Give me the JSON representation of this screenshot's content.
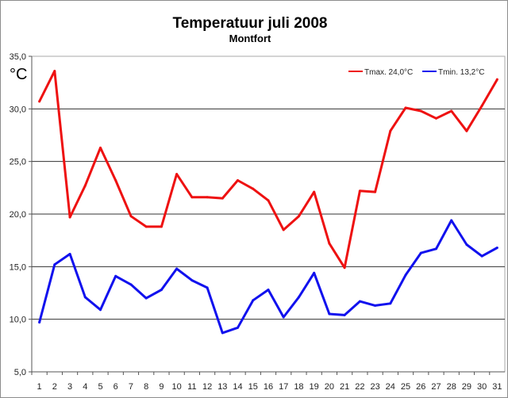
{
  "chart_data": {
    "type": "line",
    "title": "Temperatuur juli 2008",
    "subtitle": "Montfort",
    "ylabel": "°C",
    "xlabel": "",
    "ylim": [
      5,
      35
    ],
    "yticks": [
      5,
      10,
      15,
      20,
      25,
      30,
      35
    ],
    "ytick_labels": [
      "5,0",
      "10,0",
      "15,0",
      "20,0",
      "25,0",
      "30,0",
      "35,0"
    ],
    "grid": true,
    "legend_position": "top-right",
    "x": [
      1,
      2,
      3,
      4,
      5,
      6,
      7,
      8,
      9,
      10,
      11,
      12,
      13,
      14,
      15,
      16,
      17,
      18,
      19,
      20,
      21,
      22,
      23,
      24,
      25,
      26,
      27,
      28,
      29,
      30,
      31
    ],
    "series": [
      {
        "name": "Tmax. 24,0°C",
        "color": "#ee1111",
        "values": [
          30.7,
          33.6,
          19.7,
          22.7,
          26.3,
          23.2,
          19.8,
          18.8,
          18.8,
          23.8,
          21.6,
          21.6,
          21.5,
          23.2,
          22.4,
          21.3,
          18.5,
          19.8,
          22.1,
          17.2,
          14.9,
          22.2,
          22.1,
          27.9,
          30.1,
          29.8,
          29.1,
          29.8,
          27.9,
          30.3,
          32.8
        ]
      },
      {
        "name": "Tmin. 13,2°C",
        "color": "#1111ee",
        "values": [
          9.7,
          15.2,
          16.2,
          12.1,
          10.9,
          14.1,
          13.3,
          12.0,
          12.8,
          14.8,
          13.7,
          13.0,
          8.7,
          9.2,
          11.8,
          12.8,
          10.2,
          12.1,
          14.4,
          10.5,
          10.4,
          11.7,
          11.3,
          11.5,
          14.2,
          16.3,
          16.7,
          19.4,
          17.1,
          16.0,
          16.8
        ]
      }
    ]
  }
}
